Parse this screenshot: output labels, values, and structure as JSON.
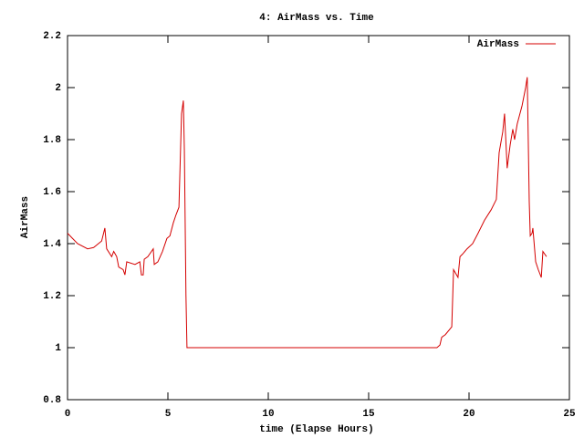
{
  "chart_data": {
    "type": "line",
    "title": "4: AirMass vs. Time",
    "xlabel": "time (Elapse Hours)",
    "ylabel": "AirMass",
    "xlim": [
      0,
      25
    ],
    "xticks": [
      0,
      5,
      10,
      15,
      20,
      25
    ],
    "ylim": [
      0.8,
      2.2
    ],
    "yticks": [
      0.8,
      1,
      1.2,
      1.4,
      1.6,
      1.8,
      2,
      2.2
    ],
    "legend": "top-right",
    "series": [
      {
        "name": "AirMass",
        "color": "#d40000",
        "x": [
          0,
          0.5,
          1,
          1.3,
          1.7,
          1.86,
          1.95,
          2.2,
          2.3,
          2.45,
          2.55,
          2.77,
          2.86,
          2.95,
          3.36,
          3.6,
          3.68,
          3.77,
          3.82,
          4.0,
          4.27,
          4.32,
          4.5,
          4.73,
          4.95,
          5.1,
          5.27,
          5.4,
          5.55,
          5.68,
          5.77,
          5.82,
          5.9,
          5.95,
          18.4,
          18.55,
          18.64,
          18.82,
          19.14,
          19.23,
          19.45,
          19.55,
          19.68,
          19.9,
          20.18,
          20.45,
          20.77,
          21.1,
          21.36,
          21.5,
          21.68,
          21.77,
          21.9,
          22.05,
          22.18,
          22.27,
          22.4,
          22.64,
          22.82,
          22.9,
          23.0,
          23.05,
          23.14,
          23.18,
          23.32,
          23.45,
          23.6,
          23.68,
          23.86
        ],
        "values": [
          1.44,
          1.4,
          1.38,
          1.385,
          1.41,
          1.46,
          1.38,
          1.35,
          1.37,
          1.35,
          1.31,
          1.3,
          1.28,
          1.33,
          1.32,
          1.33,
          1.28,
          1.28,
          1.34,
          1.35,
          1.38,
          1.32,
          1.33,
          1.37,
          1.42,
          1.43,
          1.48,
          1.51,
          1.54,
          1.9,
          1.95,
          1.76,
          1.2,
          1.0,
          1.0,
          1.01,
          1.04,
          1.05,
          1.08,
          1.3,
          1.27,
          1.35,
          1.36,
          1.38,
          1.4,
          1.44,
          1.49,
          1.53,
          1.57,
          1.75,
          1.83,
          1.9,
          1.69,
          1.78,
          1.84,
          1.8,
          1.86,
          1.93,
          2.0,
          2.04,
          1.56,
          1.43,
          1.44,
          1.46,
          1.33,
          1.3,
          1.27,
          1.37,
          1.35
        ]
      }
    ]
  }
}
